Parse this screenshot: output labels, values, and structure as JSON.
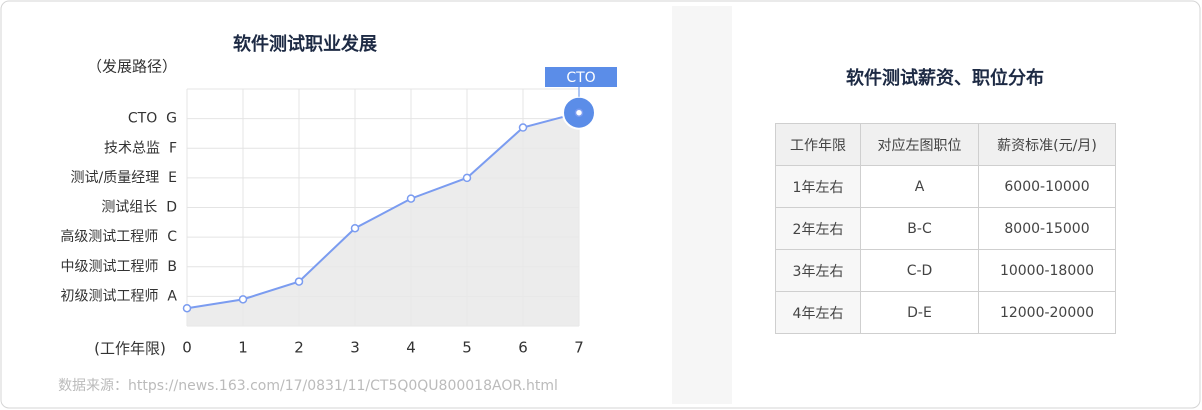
{
  "chart_data": {
    "type": "line",
    "title": "软件测试职业发展",
    "y_label": "（发展路径）",
    "x_label": "(工作年限)",
    "x": [
      0,
      1,
      2,
      3,
      4,
      5,
      6,
      7
    ],
    "xlim": [
      0,
      7
    ],
    "xticks": [
      0,
      1,
      2,
      3,
      4,
      5,
      6,
      7
    ],
    "values": [
      0.6,
      0.9,
      1.5,
      3.3,
      4.3,
      5.0,
      6.7,
      7.2
    ],
    "color": "#7b9cf0",
    "area_color": "#e9e9e9",
    "ylim": [
      0,
      8
    ],
    "yticks": [
      {
        "value": 1,
        "label": "初级测试工程师  A"
      },
      {
        "value": 2,
        "label": "中级测试工程师  B"
      },
      {
        "value": 3,
        "label": "高级测试工程师  C"
      },
      {
        "value": 4,
        "label": "测试组长  D"
      },
      {
        "value": 5,
        "label": "测试/质量经理  E"
      },
      {
        "value": 6,
        "label": "技术总监  F"
      },
      {
        "value": 7,
        "label": "CTO  G"
      }
    ],
    "grid": true,
    "annotation": "CTO",
    "annotation_color": "#5b8de8"
  },
  "table": {
    "title": "软件测试薪资、职位分布",
    "headers": [
      "工作年限",
      "对应左图职位",
      "薪资标准(元/月)"
    ],
    "rows": [
      [
        "1年左右",
        "A",
        "6000-10000"
      ],
      [
        "2年左右",
        "B-C",
        "8000-15000"
      ],
      [
        "3年左右",
        "C-D",
        "10000-18000"
      ],
      [
        "4年左右",
        "D-E",
        "12000-20000"
      ]
    ]
  },
  "source": "数据来源：https://news.163.com/17/0831/11/CT5Q0QU800018AOR.html"
}
